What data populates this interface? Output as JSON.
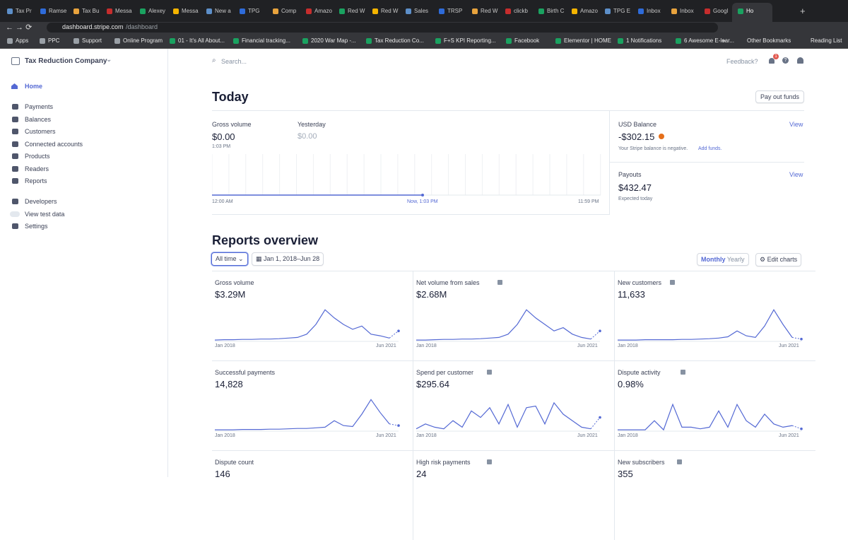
{
  "browser": {
    "tabs": [
      "Tax Pr",
      "Ramse",
      "Tax Bu",
      "Messa",
      "Alexey",
      "Messa",
      "New a",
      "TPG W",
      "Comp",
      "Amazo",
      "Red W",
      "Red W",
      "Sales",
      "TRSP",
      "Red W",
      "clickb",
      "Birth C",
      "Amazo",
      "TPG E",
      "Inbox",
      "Inbox",
      "Googl",
      "Ho"
    ],
    "url_host": "dashboard.stripe.com",
    "url_path": "/dashboard",
    "bookmarks": [
      "Apps",
      "PPC",
      "Support",
      "Online Program",
      "01 - It's All About...",
      "Financial tracking...",
      "2020 War Map -...",
      "Tax Reduction Co...",
      "F+S KPI Reporting...",
      "Facebook",
      "Elementor | HOME",
      "1 Notifications",
      "6 Awesome E-lear..."
    ],
    "more": "»",
    "other_bookmarks": "Other Bookmarks",
    "reading_list": "Reading List"
  },
  "sidebar": {
    "company": "Tax Reduction Company",
    "home": "Home",
    "nav": [
      "Payments",
      "Balances",
      "Customers",
      "Connected accounts",
      "Products",
      "Readers",
      "Reports"
    ],
    "nav2": [
      "Developers",
      "View test data",
      "Settings"
    ]
  },
  "topbar": {
    "search": "Search...",
    "feedback": "Feedback?",
    "badge": "1"
  },
  "today": {
    "title": "Today",
    "payout_button": "Pay out funds",
    "gross_label": "Gross volume",
    "gross_value": "$0.00",
    "gross_time": "1:03 PM",
    "yesterday_label": "Yesterday",
    "yesterday_value": "$0.00",
    "x_start": "12:00 AM",
    "x_now": "Now, 1:03 PM",
    "x_end": "11:59 PM",
    "balance": {
      "label": "USD Balance",
      "link": "View",
      "value": "-$302.15",
      "note": "Your Stripe balance is negative.",
      "note_link": "Add funds."
    },
    "payouts": {
      "label": "Payouts",
      "link": "View",
      "value": "$432.47",
      "note": "Expected today"
    }
  },
  "reports": {
    "title": "Reports overview",
    "range": "All time",
    "dates": "Jan 1, 2018–Jun 28",
    "monthly": "Monthly",
    "yearly": "Yearly",
    "edit": "Edit charts",
    "cards": [
      {
        "label": "Gross volume",
        "value": "$3.29M",
        "start": "Jan 2018",
        "end": "Jun 2021"
      },
      {
        "label": "Net volume from sales",
        "value": "$2.68M",
        "start": "Jan 2018",
        "end": "Jun 2021"
      },
      {
        "label": "New customers",
        "value": "11,633",
        "start": "Jan 2018",
        "end": "Jun 2021"
      },
      {
        "label": "Successful payments",
        "value": "14,828",
        "start": "Jan 2018",
        "end": "Jun 2021"
      },
      {
        "label": "Spend per customer",
        "value": "$295.64",
        "start": "Jan 2018",
        "end": "Jun 2021"
      },
      {
        "label": "Dispute activity",
        "value": "0.98%",
        "start": "Jan 2018",
        "end": "Jun 2021"
      },
      {
        "label": "Dispute count",
        "value": "146"
      },
      {
        "label": "High risk payments",
        "value": "24"
      },
      {
        "label": "New subscribers",
        "value": "355"
      }
    ]
  }
}
